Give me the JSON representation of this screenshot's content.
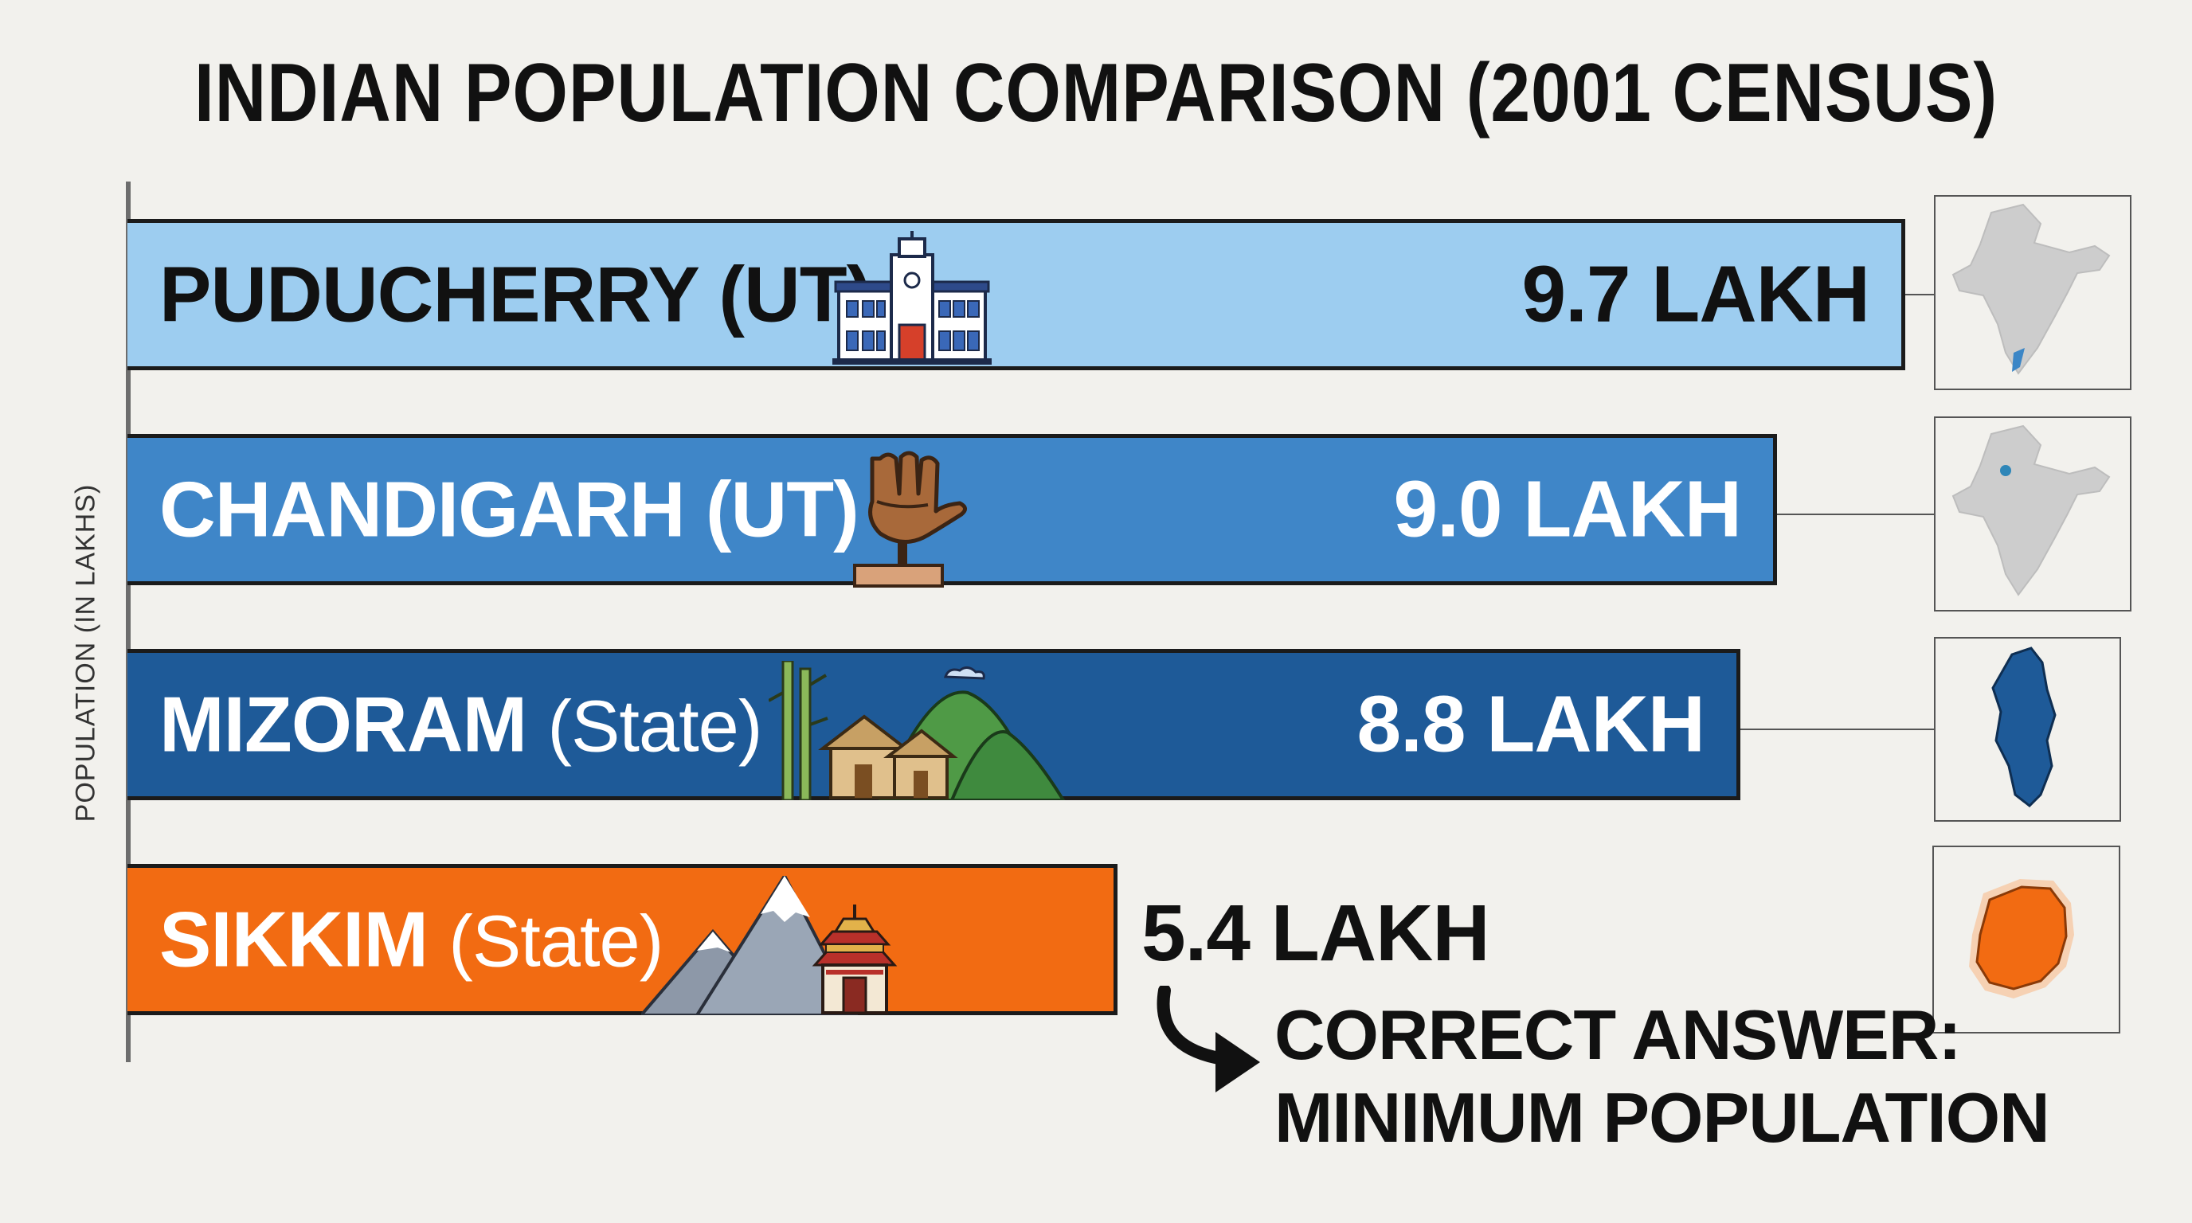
{
  "chart_data": {
    "type": "bar",
    "orientation": "horizontal",
    "title": "INDIAN POPULATION COMPARISON (2001 CENSUS)",
    "ylabel": "POPULATION (IN LAKHS)",
    "xlim": [
      0,
      10.5
    ],
    "grid": false,
    "categories": [
      {
        "name": "PUDUCHERRY",
        "type": "(UT)"
      },
      {
        "name": "CHANDIGARH",
        "type": "(UT)"
      },
      {
        "name": "MIZORAM",
        "type": "(State)"
      },
      {
        "name": "SIKKIM",
        "type": "(State)"
      }
    ],
    "values": [
      9.7,
      9.0,
      8.8,
      5.4
    ],
    "value_labels": [
      "9.7 LAKH",
      "9.0 LAKH",
      "8.8 LAKH",
      "5.4 LAKH"
    ],
    "colors": [
      "#9dcdf0",
      "#3f86c8",
      "#1e5a98",
      "#f26b12"
    ],
    "label_colors": [
      "#111111",
      "#ffffff",
      "#ffffff",
      "#ffffff"
    ],
    "icons": [
      "heritage-building-icon",
      "open-hand-monument-icon",
      "bamboo-hills-huts-icon",
      "mountains-monastery-icon"
    ],
    "map_icons": [
      "india-map-puducherry-icon",
      "india-map-chandigarh-icon",
      "mizoram-map-icon",
      "sikkim-map-icon"
    ],
    "annotation": {
      "line1": "CORRECT ANSWER:",
      "line2": "MINIMUM POPULATION",
      "target": "SIKKIM"
    }
  }
}
